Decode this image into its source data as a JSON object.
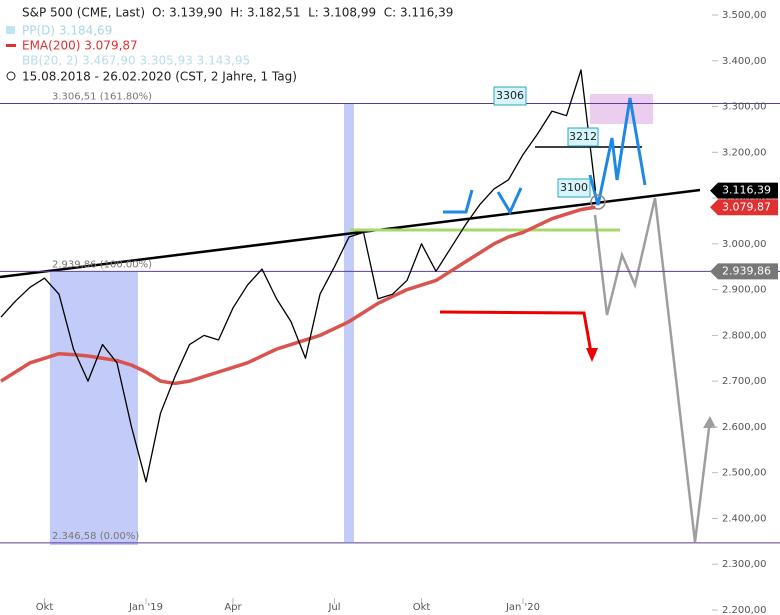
{
  "chart_data": {
    "type": "line",
    "header": {
      "instrument": "S&P 500 (CME, Last)",
      "ohlc": "O: 3.139,90  H: 3.182,51  L: 3.108,99  C: 3.116,39",
      "pp": "PP(D) 3.184,69",
      "ema": "EMA(200) 3.079,87",
      "bb": "BB(20, 2) 3.467,90 3.305,93 3.143,95",
      "range": "15.08.2018 - 26.02.2020 (CST, 2 Jahre, 1 Tag)"
    },
    "categories": [
      null,
      null,
      null,
      "Okt",
      null,
      null,
      null,
      null,
      null,
      null,
      "Jan '19",
      null,
      null,
      null,
      null,
      null,
      "Apr",
      null,
      null,
      null,
      null,
      null,
      null,
      "Jul",
      null,
      null,
      null,
      null,
      null,
      "Okt",
      null,
      null,
      null,
      null,
      null,
      null,
      "Jan '20",
      null,
      null,
      null,
      null,
      null
    ],
    "series": [
      {
        "name": "S&P 500",
        "color": "#000000",
        "values": [
          2840,
          2875,
          2905,
          2925,
          2890,
          2770,
          2700,
          2780,
          2740,
          2600,
          2480,
          2630,
          2710,
          2780,
          2800,
          2790,
          2860,
          2910,
          2945,
          2880,
          2830,
          2750,
          2890,
          2950,
          3015,
          3025,
          2880,
          2890,
          2920,
          3000,
          2940,
          2990,
          3040,
          3085,
          3120,
          3140,
          3195,
          3240,
          3290,
          3280,
          3380,
          3116
        ]
      },
      {
        "name": "EMA(200)",
        "color": "#d9534f",
        "values": [
          2700,
          2720,
          2740,
          2750,
          2760,
          2758,
          2755,
          2750,
          2745,
          2735,
          2720,
          2700,
          2695,
          2700,
          2710,
          2720,
          2730,
          2740,
          2755,
          2770,
          2780,
          2790,
          2800,
          2815,
          2830,
          2850,
          2870,
          2885,
          2900,
          2910,
          2920,
          2940,
          2960,
          2980,
          3000,
          3015,
          3025,
          3040,
          3055,
          3065,
          3075,
          3080
        ]
      }
    ],
    "levels": [
      {
        "value": 3306.51,
        "label": "3.306,51 (161.80%)"
      },
      {
        "value": 2939.86,
        "label": "2.939,86 (100.00%)"
      },
      {
        "value": 2346.58,
        "label": "2.346,58 (0.00%)"
      }
    ],
    "price_tags": [
      {
        "value": 3116.39,
        "label": "3.116,39",
        "color": "#000000"
      },
      {
        "value": 3079.87,
        "label": "3.079,87",
        "color": "#e03030"
      },
      {
        "value": 2939.86,
        "label": "2.939,86",
        "color": "#777777"
      }
    ],
    "annotations": [
      "3306",
      "3212",
      "3100"
    ],
    "ylim": [
      2200,
      3500
    ],
    "yticks": [
      {
        "value": 3500,
        "label": "3.500,00"
      },
      {
        "value": 3400,
        "label": "3.400,00"
      },
      {
        "value": 3300,
        "label": "3.300,00"
      },
      {
        "value": 3200,
        "label": "3.200,00"
      },
      {
        "value": 3100,
        "label": "3.100,00"
      },
      {
        "value": 3000,
        "label": "3.000,00"
      },
      {
        "value": 2900,
        "label": "2.900,00"
      },
      {
        "value": 2800,
        "label": "2.800,00"
      },
      {
        "value": 2700,
        "label": "2.700,00"
      },
      {
        "value": 2600,
        "label": "2.600,00"
      },
      {
        "value": 2500,
        "label": "2.500,00"
      },
      {
        "value": 2400,
        "label": "2.400,00"
      },
      {
        "value": 2300,
        "label": "2.300,00"
      },
      {
        "value": 2200,
        "label": "2.200,00"
      }
    ]
  }
}
